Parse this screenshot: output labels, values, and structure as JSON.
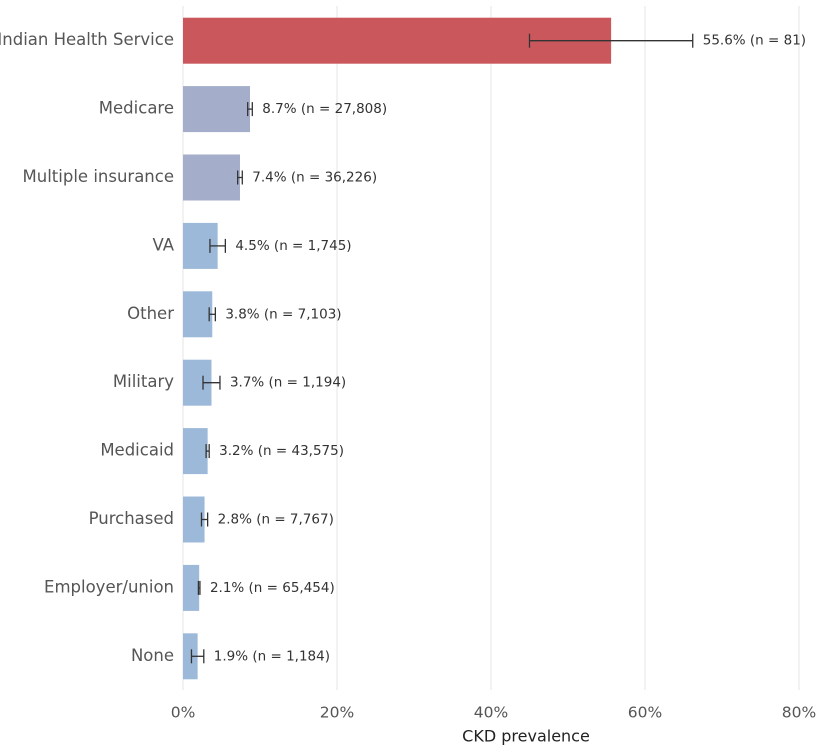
{
  "chart_data": {
    "type": "barh",
    "categories": [
      "Indian Health Service",
      "Medicare",
      "Multiple insurance",
      "VA",
      "Other",
      "Military",
      "Medicaid",
      "Purchased",
      "Employer/union",
      "None"
    ],
    "values": [
      55.6,
      8.7,
      7.4,
      4.5,
      3.8,
      3.7,
      3.2,
      2.8,
      2.1,
      1.9
    ],
    "errors": [
      10.6,
      0.3,
      0.3,
      1.0,
      0.4,
      1.1,
      0.2,
      0.4,
      0.1,
      0.8
    ],
    "value_labels": [
      "55.6%  (n = 81)",
      "8.7%  (n = 27,808)",
      "7.4%  (n = 36,226)",
      "4.5%  (n = 1,745)",
      "3.8%  (n = 7,103)",
      "3.7%  (n = 1,194)",
      "3.2%  (n = 43,575)",
      "2.8%  (n = 7,767)",
      "2.1%  (n = 65,454)",
      "1.9%  (n = 1,184)"
    ],
    "colors": [
      "#c9575c",
      "#a4adc9",
      "#a4adc9",
      "#9db9d9",
      "#9db9d9",
      "#9db9d9",
      "#9db9d9",
      "#9db9d9",
      "#9db9d9",
      "#9db9d9"
    ],
    "xlabel": "CKD prevalence",
    "xlim": [
      0,
      80
    ],
    "xticks": [
      {
        "value": 0,
        "label": "0%"
      },
      {
        "value": 20,
        "label": "20%"
      },
      {
        "value": 40,
        "label": "40%"
      },
      {
        "value": 60,
        "label": "60%"
      },
      {
        "value": 80,
        "label": "80%"
      }
    ],
    "grid": true
  }
}
